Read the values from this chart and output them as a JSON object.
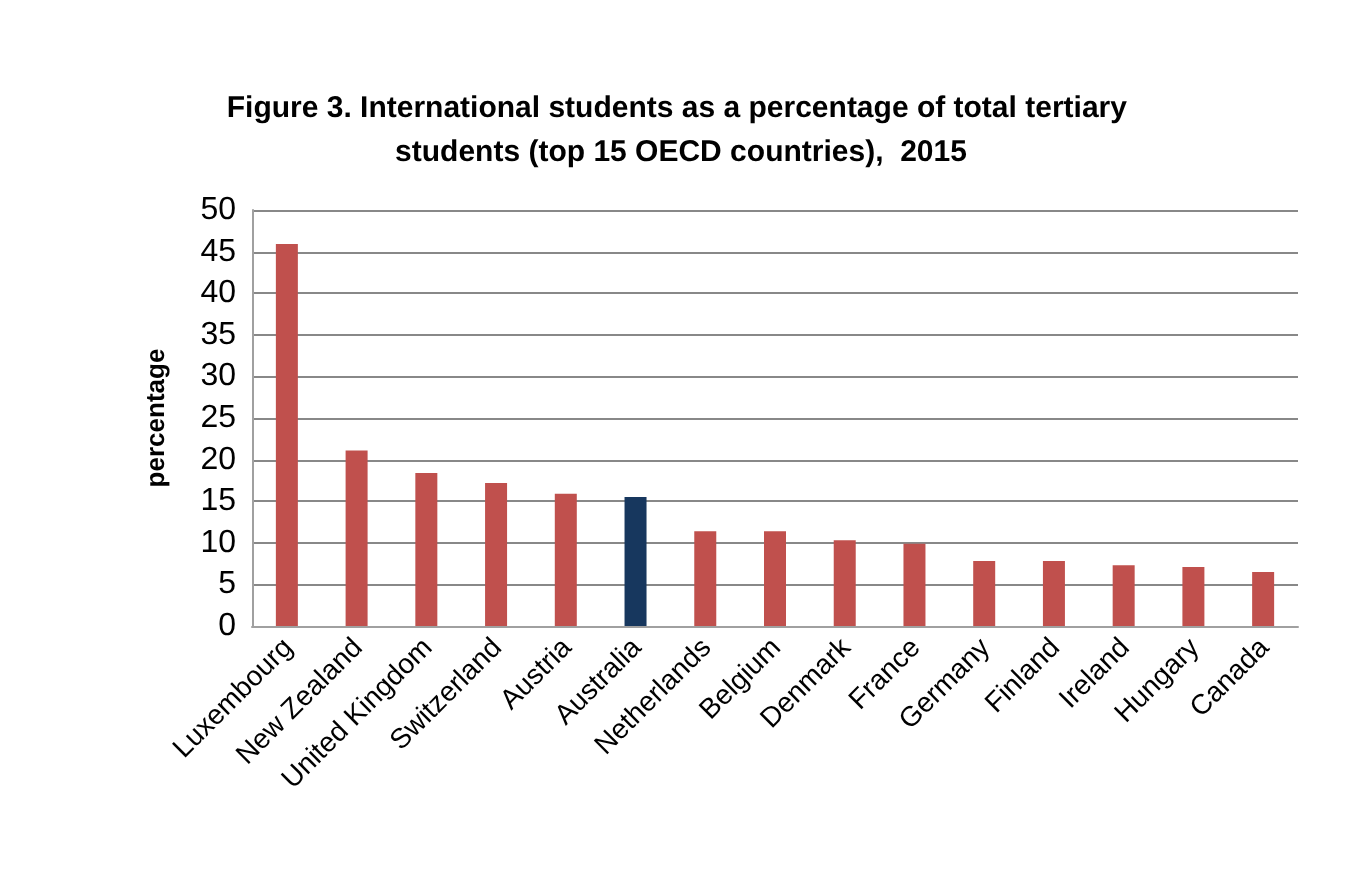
{
  "chart_data": {
    "type": "bar",
    "title": "Figure 3. International students as a percentage of total tertiary students (top 15 OECD countries),  2015",
    "ylabel": "percentage",
    "categories": [
      "Luxembourg",
      "New Zealand",
      "United Kingdom",
      "Switzerland",
      "Austria",
      "Australia",
      "Netherlands",
      "Belgium",
      "Denmark",
      "France",
      "Germany",
      "Finland",
      "Ireland",
      "Hungary",
      "Canada"
    ],
    "values": [
      45.9,
      21.1,
      18.4,
      17.2,
      15.9,
      15.5,
      11.4,
      11.4,
      10.3,
      9.9,
      7.8,
      7.8,
      7.3,
      7.1,
      6.5
    ],
    "colors": [
      "#c0504d",
      "#c0504d",
      "#c0504d",
      "#c0504d",
      "#c0504d",
      "#17375e",
      "#c0504d",
      "#c0504d",
      "#c0504d",
      "#c0504d",
      "#c0504d",
      "#c0504d",
      "#c0504d",
      "#c0504d",
      "#c0504d"
    ],
    "ylim": [
      0,
      50
    ],
    "yticks": [
      0,
      5,
      10,
      15,
      20,
      25,
      30,
      35,
      40,
      45,
      50
    ],
    "grid": "y"
  }
}
